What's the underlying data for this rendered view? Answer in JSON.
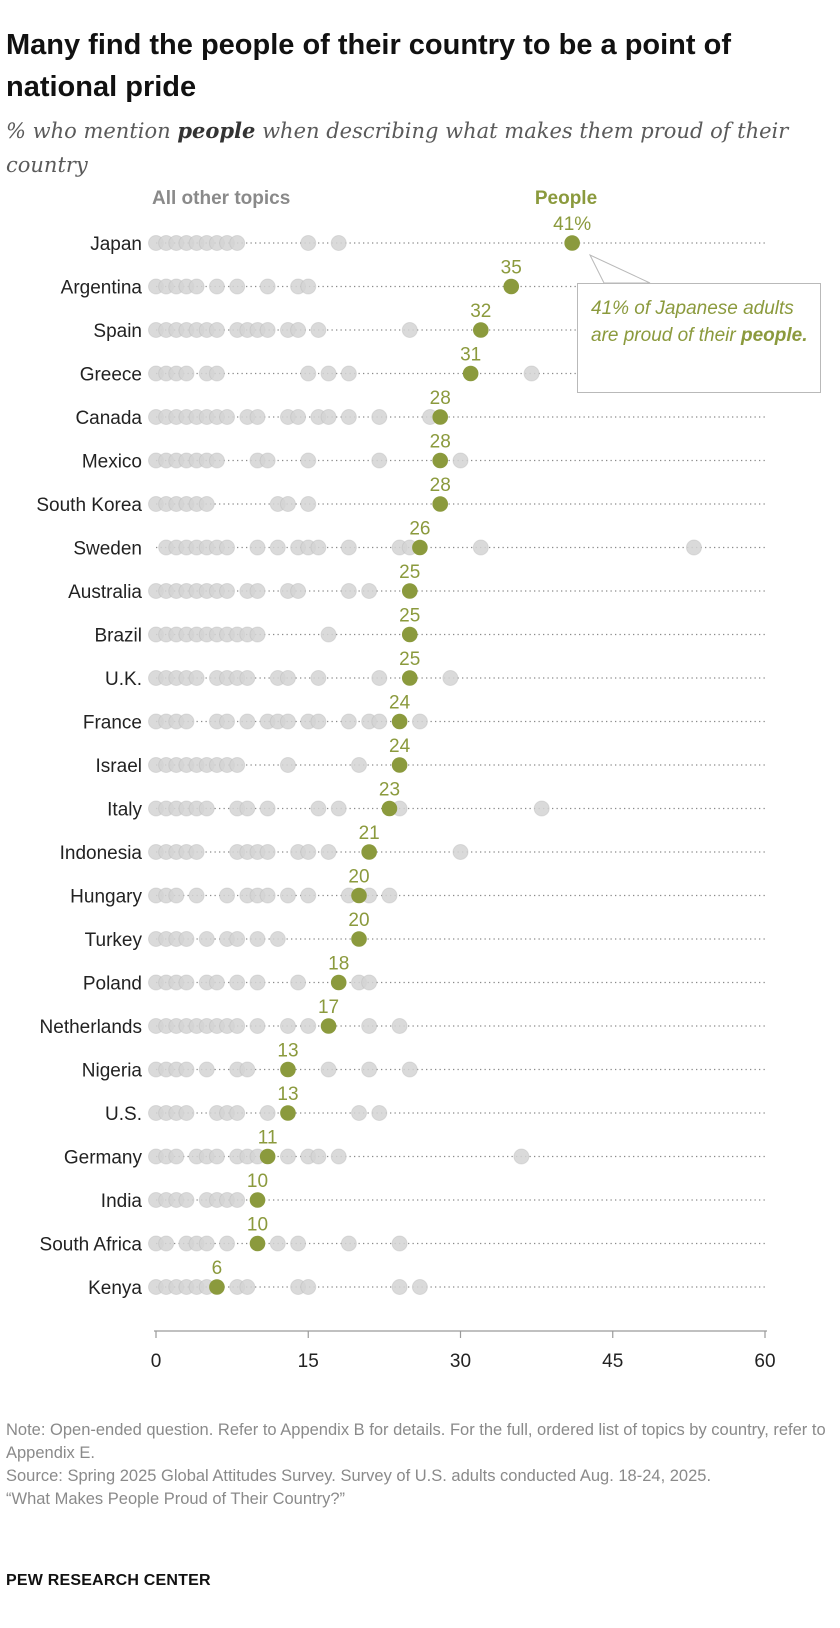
{
  "title": "Many find the people of their country to be a point of national pride",
  "subtitle": {
    "before": "% who mention ",
    "emphasis": "people",
    "after": " when describing what makes them proud of their country"
  },
  "colors": {
    "people": "#8b9a3d",
    "other_light": "#d3d3d3",
    "other_dark": "#b3b3b3",
    "text": "#222222",
    "note": "#8a8a8a"
  },
  "callout": {
    "before": "41% of Japanese adults are proud of their ",
    "emphasis": "people."
  },
  "notes": [
    "Note: Open-ended question. Refer to Appendix B for details. For the full, ordered list of topics by country, refer to Appendix E.",
    "Source: Spring 2025 Global Attitudes Survey. Survey of U.S. adults conducted Aug. 18-24, 2025.",
    "“What Makes People Proud of Their Country?”"
  ],
  "source_brand": "PEW RESEARCH CENTER",
  "chart_data": {
    "type": "scatter",
    "legend": {
      "other": "All other topics",
      "people": "People"
    },
    "x_ticks": [
      0,
      15,
      30,
      45,
      60
    ],
    "xlim": [
      0,
      60
    ],
    "rows": [
      {
        "country": "Japan",
        "people": 41,
        "label": "41%",
        "others": [
          0,
          1,
          2,
          3,
          4,
          5,
          6,
          7,
          8,
          15,
          18
        ]
      },
      {
        "country": "Argentina",
        "people": 35,
        "label": "35",
        "others": [
          0,
          1,
          2,
          3,
          4,
          6,
          8,
          11,
          14,
          15
        ]
      },
      {
        "country": "Spain",
        "people": 32,
        "label": "32",
        "others": [
          0,
          1,
          2,
          3,
          4,
          5,
          6,
          8,
          9,
          10,
          11,
          13,
          14,
          16,
          25
        ]
      },
      {
        "country": "Greece",
        "people": 31,
        "label": "31",
        "others": [
          0,
          1,
          2,
          3,
          5,
          6,
          15,
          17,
          19,
          37
        ]
      },
      {
        "country": "Canada",
        "people": 28,
        "label": "28",
        "others": [
          0,
          1,
          2,
          3,
          4,
          5,
          6,
          7,
          9,
          10,
          13,
          14,
          16,
          17,
          19,
          22,
          27
        ]
      },
      {
        "country": "Mexico",
        "people": 28,
        "label": "28",
        "others": [
          0,
          1,
          2,
          3,
          4,
          5,
          6,
          10,
          11,
          15,
          22,
          30
        ]
      },
      {
        "country": "South Korea",
        "people": 28,
        "label": "28",
        "others": [
          0,
          1,
          2,
          3,
          4,
          5,
          12,
          13,
          15
        ]
      },
      {
        "country": "Sweden",
        "people": 26,
        "label": "26",
        "others": [
          1,
          2,
          3,
          4,
          5,
          6,
          7,
          10,
          12,
          14,
          15,
          16,
          19,
          24,
          25,
          32,
          53
        ]
      },
      {
        "country": "Australia",
        "people": 25,
        "label": "25",
        "others": [
          0,
          1,
          2,
          3,
          4,
          5,
          6,
          7,
          9,
          10,
          13,
          14,
          19,
          21
        ]
      },
      {
        "country": "Brazil",
        "people": 25,
        "label": "25",
        "others": [
          0,
          1,
          2,
          3,
          4,
          5,
          6,
          7,
          8,
          9,
          10,
          17
        ]
      },
      {
        "country": "U.K.",
        "people": 25,
        "label": "25",
        "others": [
          0,
          1,
          2,
          3,
          4,
          6,
          7,
          8,
          9,
          12,
          13,
          16,
          22,
          29
        ]
      },
      {
        "country": "France",
        "people": 24,
        "label": "24",
        "others": [
          0,
          1,
          2,
          3,
          6,
          7,
          9,
          11,
          12,
          13,
          15,
          16,
          19,
          21,
          22,
          26
        ]
      },
      {
        "country": "Israel",
        "people": 24,
        "label": "24",
        "others": [
          0,
          1,
          2,
          3,
          4,
          5,
          6,
          7,
          8,
          13,
          20
        ]
      },
      {
        "country": "Italy",
        "people": 23,
        "label": "23",
        "others": [
          0,
          1,
          2,
          3,
          4,
          5,
          8,
          9,
          11,
          16,
          18,
          24,
          38
        ]
      },
      {
        "country": "Indonesia",
        "people": 21,
        "label": "21",
        "others": [
          0,
          1,
          2,
          3,
          4,
          8,
          9,
          10,
          11,
          14,
          15,
          17,
          30
        ]
      },
      {
        "country": "Hungary",
        "people": 20,
        "label": "20",
        "others": [
          0,
          1,
          2,
          4,
          7,
          9,
          10,
          11,
          13,
          15,
          19,
          21,
          23
        ]
      },
      {
        "country": "Turkey",
        "people": 20,
        "label": "20",
        "others": [
          0,
          1,
          2,
          3,
          5,
          7,
          8,
          10,
          12
        ]
      },
      {
        "country": "Poland",
        "people": 18,
        "label": "18",
        "others": [
          0,
          1,
          2,
          3,
          5,
          6,
          8,
          10,
          14,
          20,
          21
        ]
      },
      {
        "country": "Netherlands",
        "people": 17,
        "label": "17",
        "others": [
          0,
          1,
          2,
          3,
          4,
          5,
          6,
          7,
          8,
          10,
          13,
          15,
          21,
          24
        ]
      },
      {
        "country": "Nigeria",
        "people": 13,
        "label": "13",
        "others": [
          0,
          1,
          2,
          3,
          5,
          8,
          9,
          17,
          21,
          25
        ]
      },
      {
        "country": "U.S.",
        "people": 13,
        "label": "13",
        "others": [
          0,
          1,
          2,
          3,
          6,
          7,
          8,
          11,
          20,
          22
        ]
      },
      {
        "country": "Germany",
        "people": 11,
        "label": "11",
        "others": [
          0,
          1,
          2,
          4,
          5,
          6,
          8,
          9,
          10,
          13,
          15,
          16,
          18,
          36
        ]
      },
      {
        "country": "India",
        "people": 10,
        "label": "10",
        "others": [
          0,
          1,
          2,
          3,
          5,
          6,
          7,
          8
        ]
      },
      {
        "country": "South Africa",
        "people": 10,
        "label": "10",
        "others": [
          0,
          1,
          3,
          4,
          5,
          7,
          12,
          14,
          19,
          24
        ]
      },
      {
        "country": "Kenya",
        "people": 6,
        "label": "6",
        "others": [
          0,
          1,
          2,
          3,
          4,
          5,
          8,
          9,
          14,
          15,
          24,
          26
        ]
      }
    ]
  }
}
